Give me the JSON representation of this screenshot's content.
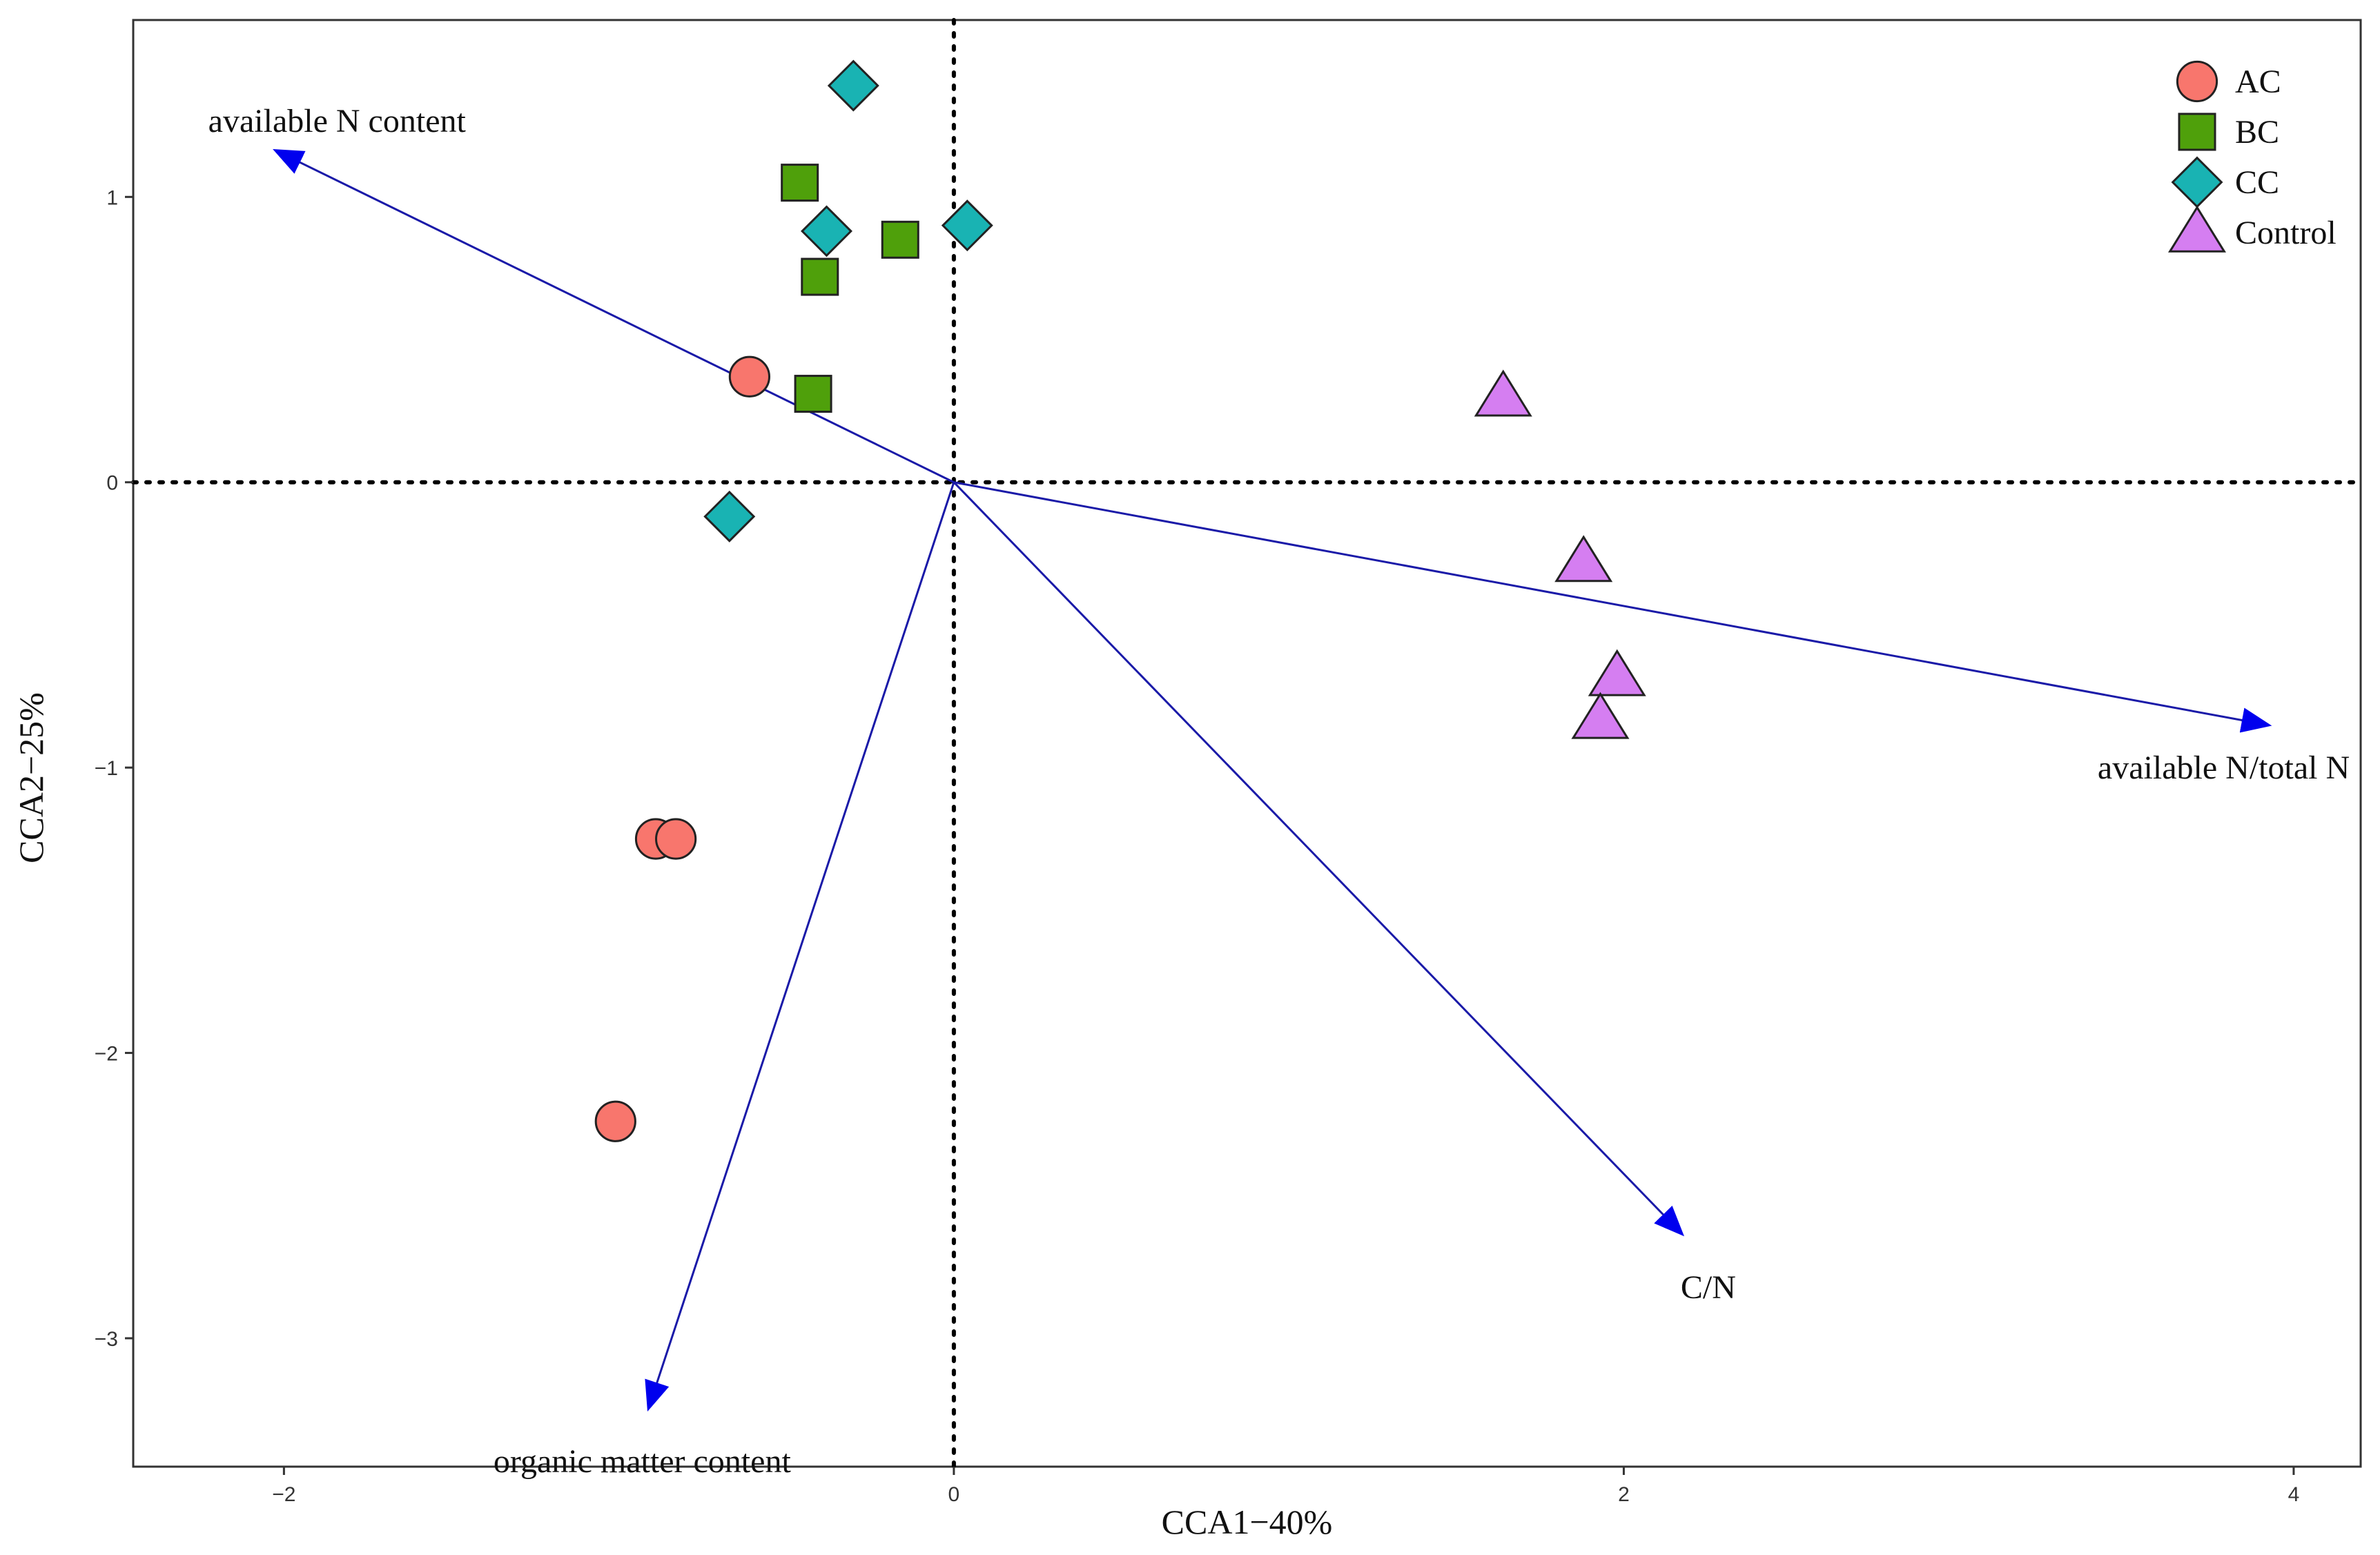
{
  "chart_data": {
    "type": "scatter",
    "xlabel": "CCA1−40%",
    "ylabel": "CCA2−25%",
    "xlim": [
      -2.45,
      4.2
    ],
    "ylim": [
      -3.45,
      1.62
    ],
    "xticks": [
      -2,
      0,
      2,
      4
    ],
    "yticks": [
      -3,
      -2,
      -1,
      0,
      1
    ],
    "grid": false,
    "reference_lines": {
      "x": 0,
      "y": 0,
      "style": "dotted"
    },
    "legend_position": "top-right",
    "series": [
      {
        "name": "AC",
        "marker": "circle",
        "color": "#f8766d",
        "points": [
          [
            -0.61,
            0.37
          ],
          [
            -0.89,
            -1.25
          ],
          [
            -0.83,
            -1.25
          ],
          [
            -1.01,
            -2.24
          ]
        ]
      },
      {
        "name": "BC",
        "marker": "square",
        "color": "#4fa00b",
        "points": [
          [
            -0.46,
            1.05
          ],
          [
            -0.16,
            0.85
          ],
          [
            -0.4,
            0.72
          ],
          [
            -0.42,
            0.31
          ]
        ]
      },
      {
        "name": "CC",
        "marker": "diamond",
        "color": "#19b3b3",
        "points": [
          [
            -0.3,
            1.39
          ],
          [
            -0.38,
            0.88
          ],
          [
            0.04,
            0.9
          ],
          [
            -0.67,
            -0.12
          ]
        ]
      },
      {
        "name": "Control",
        "marker": "triangle",
        "color": "#d57ef1",
        "points": [
          [
            1.64,
            0.3
          ],
          [
            1.88,
            -0.28
          ],
          [
            1.98,
            -0.68
          ],
          [
            1.93,
            -0.83
          ]
        ]
      }
    ],
    "arrows": [
      {
        "label": "available N content",
        "x": -2.02,
        "y": 1.16
      },
      {
        "label": "available N/total N",
        "x": 3.92,
        "y": -0.85
      },
      {
        "label": "C/N",
        "x": 2.17,
        "y": -2.63
      },
      {
        "label": "organic matter content",
        "x": -0.91,
        "y": -3.24
      }
    ]
  },
  "colors": {
    "arrow": "#1a1aa8",
    "arrowhead": "#0000ee",
    "marker_stroke": "#222222",
    "frame": "#333333"
  }
}
